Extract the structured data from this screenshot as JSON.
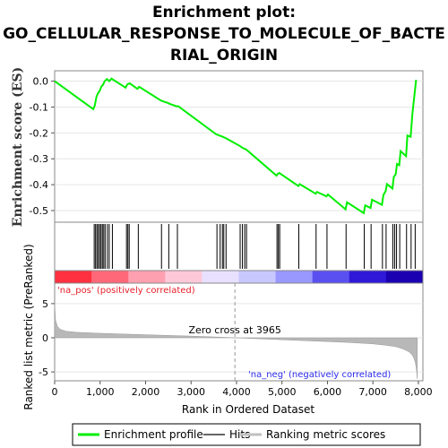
{
  "title": {
    "line1": "Enrichment plot:",
    "line2": "GO_CELLULAR_RESPONSE_TO_MOLECULE_OF_BACTE",
    "line3": "RIAL_ORIGIN"
  },
  "chart_data": {
    "type": "line",
    "es_panel": {
      "ylabel": "Enrichment score (ES)",
      "yticks": [
        0.0,
        -0.1,
        -0.2,
        -0.3,
        -0.4,
        -0.5
      ],
      "ytick_labels": [
        "0.0",
        "-0.1",
        "-0.2",
        "-0.3",
        "-0.4",
        "-0.5"
      ],
      "ylim": [
        -0.545,
        0.04
      ],
      "color": "#00ee00",
      "x": [
        0,
        850,
        880,
        920,
        950,
        990,
        1030,
        1060,
        1100,
        1150,
        1200,
        1250,
        1290,
        1560,
        1600,
        1650,
        1820,
        1860,
        2340,
        2380,
        2500,
        2530,
        2680,
        2720,
        3550,
        3620,
        3700,
        3760,
        4070,
        4110,
        4160,
        4220,
        4880,
        4910,
        4940,
        5360,
        5390,
        5740,
        5770,
        5980,
        6010,
        6400,
        6430,
        6800,
        6830,
        6950,
        6980,
        7200,
        7230,
        7280,
        7310,
        7430,
        7460,
        7500,
        7530,
        7580,
        7610,
        7730,
        7760,
        7830,
        7870,
        7950
      ],
      "y": [
        0.0,
        -0.108,
        -0.095,
        -0.06,
        -0.048,
        -0.038,
        -0.02,
        -0.015,
        0.0,
        0.008,
        0.0,
        0.01,
        0.005,
        -0.025,
        -0.012,
        -0.008,
        -0.03,
        -0.022,
        -0.075,
        -0.078,
        -0.085,
        -0.088,
        -0.097,
        -0.097,
        -0.205,
        -0.21,
        -0.215,
        -0.22,
        -0.25,
        -0.255,
        -0.26,
        -0.265,
        -0.365,
        -0.358,
        -0.355,
        -0.405,
        -0.398,
        -0.435,
        -0.428,
        -0.445,
        -0.438,
        -0.495,
        -0.468,
        -0.51,
        -0.48,
        -0.49,
        -0.458,
        -0.478,
        -0.44,
        -0.425,
        -0.398,
        -0.415,
        -0.37,
        -0.36,
        -0.32,
        -0.325,
        -0.27,
        -0.29,
        -0.21,
        -0.215,
        -0.125,
        0.005
      ]
    },
    "hits": [
      870,
      900,
      930,
      960,
      990,
      1020,
      1050,
      1080,
      1110,
      1160,
      1200,
      1270,
      1580,
      1610,
      1640,
      1840,
      2350,
      2510,
      2700,
      3570,
      3640,
      3690,
      3720,
      3770,
      4080,
      4130,
      4180,
      4220,
      4890,
      4920,
      4950,
      5370,
      5750,
      5990,
      6410,
      6810,
      6960,
      7210,
      7290,
      7440,
      7480,
      7520,
      7590,
      7740,
      7840,
      7930
    ],
    "color_band": {
      "pos_label": "'na_pos' (positively correlated)",
      "neg_label": "'na_neg' (negatively correlated)",
      "colors": [
        "#ff3040",
        "#ff6878",
        "#ffa0b0",
        "#ffc8d8",
        "#e8e0ff",
        "#c8c8ff",
        "#9898ff",
        "#5a50f0",
        "#3018d8",
        "#1a00b0"
      ]
    },
    "metric_panel": {
      "ylabel": "Ranked list metric (PreRanked)",
      "yticks": [
        5,
        0,
        -5
      ],
      "ylim": [
        -6.3,
        8.0
      ],
      "zero_cross_label": "Zero cross at 3965",
      "zero_cross": 3965,
      "curve_x": [
        0,
        20,
        60,
        120,
        250,
        500,
        900,
        1500,
        2200,
        3000,
        3600,
        3965,
        4500,
        5200,
        6000,
        6500,
        7000,
        7300,
        7500,
        7650,
        7750,
        7820,
        7870,
        7900,
        7930,
        7950,
        7965,
        7975
      ],
      "curve_y": [
        5.1,
        2.6,
        1.7,
        1.25,
        0.95,
        0.8,
        0.68,
        0.55,
        0.4,
        0.25,
        0.1,
        0.0,
        -0.15,
        -0.35,
        -0.55,
        -0.7,
        -0.9,
        -1.1,
        -1.3,
        -1.6,
        -1.9,
        -2.2,
        -2.6,
        -3.0,
        -3.6,
        -4.3,
        -5.0,
        -6.0
      ]
    },
    "xaxis": {
      "label": "Rank in Ordered Dataset",
      "ticks": [
        0,
        1000,
        2000,
        3000,
        4000,
        5000,
        6000,
        7000,
        8000
      ],
      "tick_labels": [
        "0",
        "1,000",
        "2,000",
        "3,000",
        "4,000",
        "5,000",
        "6,000",
        "7,000",
        "8,000"
      ],
      "xlim": [
        0,
        8100
      ]
    },
    "legend": {
      "items": [
        {
          "label": "Enrichment profile",
          "color": "#00ee00"
        },
        {
          "label": "Hits",
          "color": "#666666"
        },
        {
          "label": "Ranking metric scores",
          "color": "#c0c0c0"
        }
      ]
    }
  }
}
